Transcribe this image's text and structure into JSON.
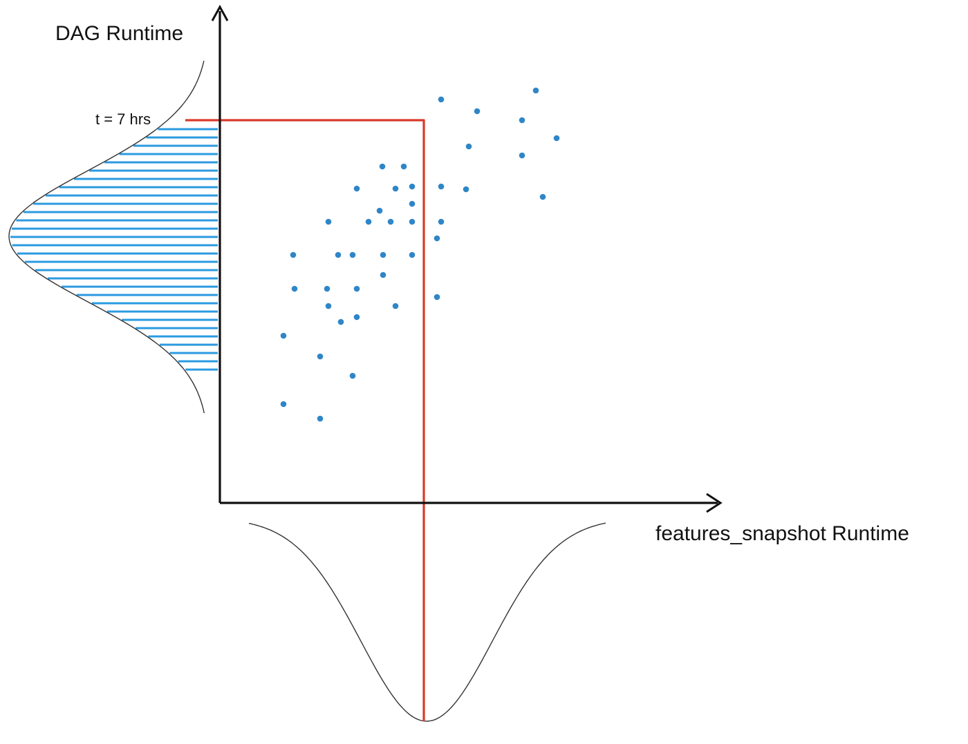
{
  "y_axis_title": "DAG Runtime",
  "x_axis_title": "features_snapshot Runtime",
  "threshold_label": "t = 7 hrs",
  "colors": {
    "axis": "#111111",
    "points": "#2f86c7",
    "hatch": "#2b9ae0",
    "threshold": "#d93a2b",
    "distribution_curve": "#333333"
  }
}
